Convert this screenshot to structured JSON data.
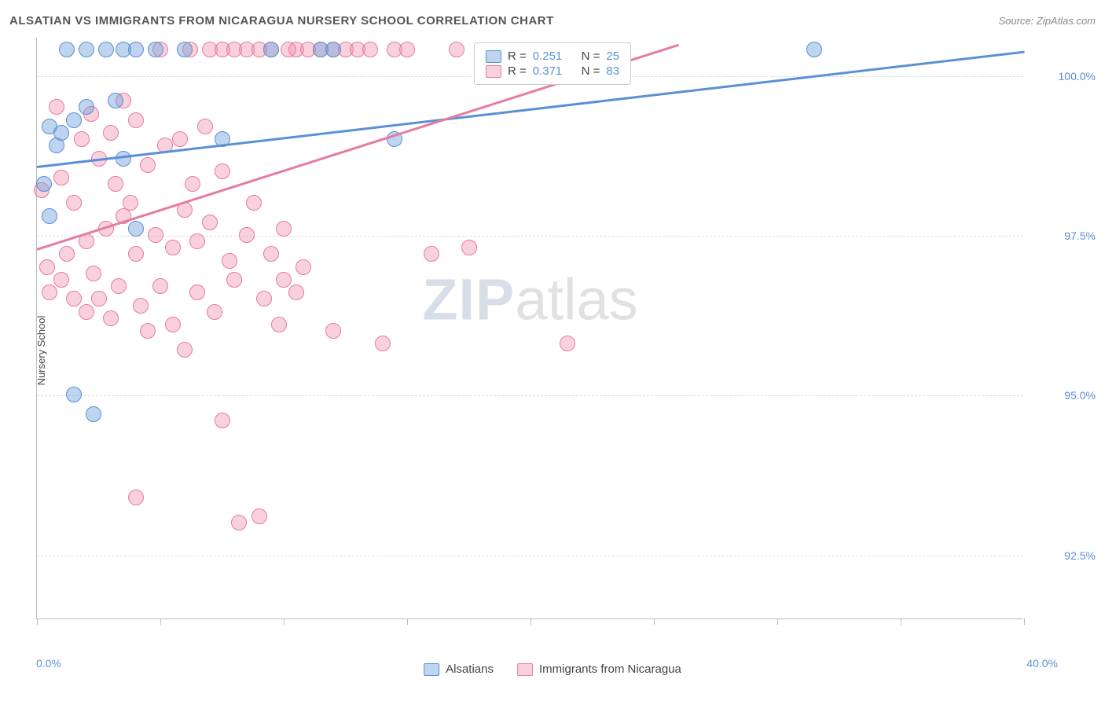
{
  "title": "ALSATIAN VS IMMIGRANTS FROM NICARAGUA NURSERY SCHOOL CORRELATION CHART",
  "source": "Source: ZipAtlas.com",
  "ylabel": "Nursery School",
  "watermark": {
    "a": "ZIP",
    "b": "atlas"
  },
  "xlim": [
    0,
    40
  ],
  "ylim": [
    91.5,
    100.6
  ],
  "xtick_positions": [
    0,
    5,
    10,
    15,
    20,
    25,
    30,
    35,
    40
  ],
  "xtick_labels": {
    "min": "0.0%",
    "max": "40.0%"
  },
  "ytick_positions": [
    92.5,
    95.0,
    97.5,
    100.0
  ],
  "ytick_labels": [
    "92.5%",
    "95.0%",
    "97.5%",
    "100.0%"
  ],
  "series": {
    "blue": {
      "label": "Alsatians",
      "fill": "rgba(110,160,220,0.45)",
      "stroke": "#5b8fd6",
      "r_value": "0.251",
      "n_value": "25",
      "trend": {
        "x1": 0,
        "y1": 98.6,
        "x2": 40,
        "y2": 100.4
      },
      "points": [
        [
          0.3,
          98.3
        ],
        [
          0.5,
          97.8
        ],
        [
          0.5,
          99.2
        ],
        [
          0.8,
          98.9
        ],
        [
          1.0,
          99.1
        ],
        [
          1.2,
          100.4
        ],
        [
          1.5,
          99.3
        ],
        [
          1.5,
          95.0
        ],
        [
          2.0,
          100.4
        ],
        [
          2.0,
          99.5
        ],
        [
          2.3,
          94.7
        ],
        [
          2.8,
          100.4
        ],
        [
          3.2,
          99.6
        ],
        [
          3.5,
          100.4
        ],
        [
          3.5,
          98.7
        ],
        [
          4.0,
          100.4
        ],
        [
          4.0,
          97.6
        ],
        [
          4.8,
          100.4
        ],
        [
          6.0,
          100.4
        ],
        [
          7.5,
          99.0
        ],
        [
          9.5,
          100.4
        ],
        [
          11.5,
          100.4
        ],
        [
          12.0,
          100.4
        ],
        [
          14.5,
          99.0
        ],
        [
          31.5,
          100.4
        ]
      ]
    },
    "pink": {
      "label": "Immigrants from Nicaragua",
      "fill": "rgba(240,140,170,0.40)",
      "stroke": "#e77aa0",
      "r_value": "0.371",
      "n_value": "83",
      "trend": {
        "x1": 0,
        "y1": 97.3,
        "x2": 26,
        "y2": 100.5
      },
      "points": [
        [
          0.2,
          98.2
        ],
        [
          0.4,
          97.0
        ],
        [
          0.5,
          96.6
        ],
        [
          0.8,
          99.5
        ],
        [
          1.0,
          98.4
        ],
        [
          1.0,
          96.8
        ],
        [
          1.2,
          97.2
        ],
        [
          1.5,
          98.0
        ],
        [
          1.5,
          96.5
        ],
        [
          1.8,
          99.0
        ],
        [
          2.0,
          97.4
        ],
        [
          2.0,
          96.3
        ],
        [
          2.2,
          99.4
        ],
        [
          2.3,
          96.9
        ],
        [
          2.5,
          98.7
        ],
        [
          2.5,
          96.5
        ],
        [
          2.8,
          97.6
        ],
        [
          3.0,
          99.1
        ],
        [
          3.0,
          96.2
        ],
        [
          3.2,
          98.3
        ],
        [
          3.3,
          96.7
        ],
        [
          3.5,
          97.8
        ],
        [
          3.5,
          99.6
        ],
        [
          3.8,
          98.0
        ],
        [
          4.0,
          97.2
        ],
        [
          4.0,
          99.3
        ],
        [
          4.0,
          93.4
        ],
        [
          4.2,
          96.4
        ],
        [
          4.5,
          98.6
        ],
        [
          4.5,
          96.0
        ],
        [
          4.8,
          97.5
        ],
        [
          5.0,
          100.4
        ],
        [
          5.0,
          96.7
        ],
        [
          5.2,
          98.9
        ],
        [
          5.5,
          97.3
        ],
        [
          5.5,
          96.1
        ],
        [
          5.8,
          99.0
        ],
        [
          6.0,
          97.9
        ],
        [
          6.0,
          95.7
        ],
        [
          6.2,
          100.4
        ],
        [
          6.3,
          98.3
        ],
        [
          6.5,
          96.6
        ],
        [
          6.5,
          97.4
        ],
        [
          6.8,
          99.2
        ],
        [
          7.0,
          100.4
        ],
        [
          7.0,
          97.7
        ],
        [
          7.2,
          96.3
        ],
        [
          7.5,
          98.5
        ],
        [
          7.5,
          100.4
        ],
        [
          7.5,
          94.6
        ],
        [
          7.8,
          97.1
        ],
        [
          8.0,
          100.4
        ],
        [
          8.0,
          96.8
        ],
        [
          8.2,
          93.0
        ],
        [
          8.5,
          100.4
        ],
        [
          8.5,
          97.5
        ],
        [
          8.8,
          98.0
        ],
        [
          9.0,
          100.4
        ],
        [
          9.0,
          93.1
        ],
        [
          9.2,
          96.5
        ],
        [
          9.5,
          97.2
        ],
        [
          9.5,
          100.4
        ],
        [
          9.8,
          96.1
        ],
        [
          10.0,
          97.6
        ],
        [
          10.0,
          96.8
        ],
        [
          10.2,
          100.4
        ],
        [
          10.5,
          100.4
        ],
        [
          10.5,
          96.6
        ],
        [
          10.8,
          97.0
        ],
        [
          11.0,
          100.4
        ],
        [
          11.5,
          100.4
        ],
        [
          12.0,
          100.4
        ],
        [
          12.0,
          96.0
        ],
        [
          12.5,
          100.4
        ],
        [
          13.0,
          100.4
        ],
        [
          13.5,
          100.4
        ],
        [
          14.0,
          95.8
        ],
        [
          14.5,
          100.4
        ],
        [
          15.0,
          100.4
        ],
        [
          16.0,
          97.2
        ],
        [
          17.0,
          100.4
        ],
        [
          17.5,
          97.3
        ],
        [
          21.5,
          95.8
        ]
      ]
    }
  },
  "legend_top": {
    "r_prefix": "R =",
    "n_prefix": "N ="
  },
  "colors": {
    "grid": "#dddddd",
    "axis": "#bbbbbb",
    "text": "#444444",
    "tick_text": "#5b8fd6"
  }
}
